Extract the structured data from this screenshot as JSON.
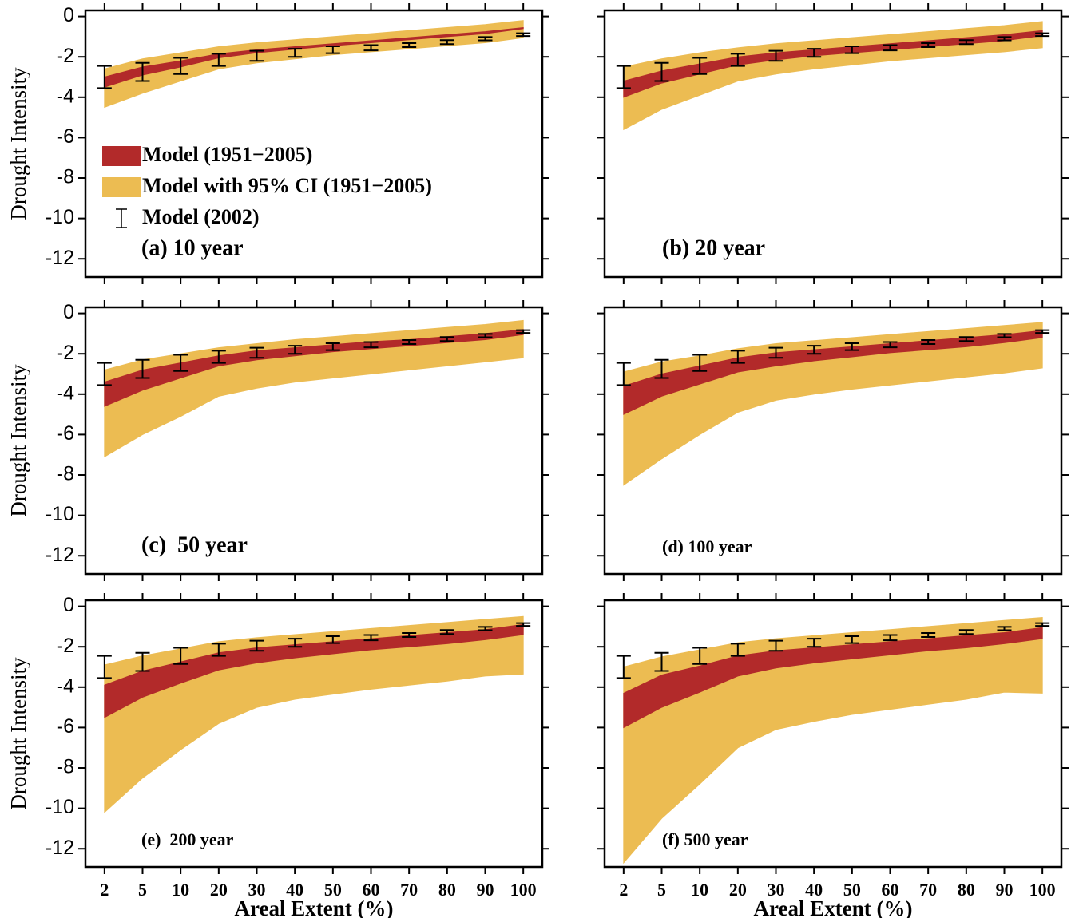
{
  "chart_data": [
    {
      "type": "band",
      "label": "(a) 10 year",
      "ylabel": "Drought Intensity",
      "ylim": [
        -12.9,
        0.3
      ],
      "yticks": [
        0,
        -2,
        -4,
        -6,
        -8,
        -10,
        -12
      ],
      "series": [
        {
          "name": "Model (1951−2005)",
          "color": "#b22a2a",
          "high": [
            -3.0,
            -2.5,
            -2.2,
            -1.85,
            -1.65,
            -1.5,
            -1.35,
            -1.2,
            -1.05,
            -0.9,
            -0.75,
            -0.55
          ],
          "low": [
            -3.5,
            -2.9,
            -2.5,
            -2.05,
            -1.8,
            -1.62,
            -1.45,
            -1.3,
            -1.15,
            -1.0,
            -0.85,
            -0.6
          ]
        },
        {
          "name": "Model with 95% CI (1951−2005)",
          "color": "#ecbc52",
          "high": [
            -2.6,
            -2.1,
            -1.8,
            -1.5,
            -1.3,
            -1.15,
            -1.0,
            -0.85,
            -0.7,
            -0.55,
            -0.4,
            -0.2
          ],
          "low": [
            -4.5,
            -3.8,
            -3.2,
            -2.6,
            -2.3,
            -2.1,
            -1.9,
            -1.75,
            -1.6,
            -1.45,
            -1.3,
            -1.05
          ]
        },
        {
          "name": "Model (2002)",
          "color": "#000000",
          "values": [
            -3.0,
            -2.75,
            -2.45,
            -2.15,
            -1.95,
            -1.8,
            -1.65,
            -1.55,
            -1.42,
            -1.27,
            -1.1,
            -0.9
          ],
          "errors": [
            0.55,
            0.45,
            0.4,
            0.3,
            0.25,
            0.2,
            0.17,
            0.13,
            0.1,
            0.1,
            0.08,
            0.07
          ]
        }
      ]
    },
    {
      "type": "band",
      "label": "(b) 20 year",
      "ylim": [
        -12.9,
        0.3
      ],
      "series": [
        {
          "color": "#b22a2a",
          "high": [
            -3.2,
            -2.7,
            -2.35,
            -2.0,
            -1.8,
            -1.65,
            -1.5,
            -1.35,
            -1.2,
            -1.05,
            -0.9,
            -0.7
          ],
          "low": [
            -4.0,
            -3.3,
            -2.85,
            -2.4,
            -2.15,
            -1.95,
            -1.8,
            -1.65,
            -1.5,
            -1.35,
            -1.2,
            -0.95
          ]
        },
        {
          "color": "#ecbc52",
          "high": [
            -2.5,
            -2.1,
            -1.8,
            -1.55,
            -1.35,
            -1.2,
            -1.05,
            -0.9,
            -0.75,
            -0.6,
            -0.45,
            -0.25
          ],
          "low": [
            -5.6,
            -4.6,
            -3.9,
            -3.2,
            -2.85,
            -2.6,
            -2.4,
            -2.2,
            -2.05,
            -1.9,
            -1.75,
            -1.55
          ]
        },
        {
          "color": "#000000",
          "values": [
            -3.0,
            -2.75,
            -2.45,
            -2.15,
            -1.95,
            -1.8,
            -1.65,
            -1.55,
            -1.42,
            -1.27,
            -1.1,
            -0.9
          ],
          "errors": [
            0.55,
            0.45,
            0.4,
            0.3,
            0.25,
            0.2,
            0.17,
            0.13,
            0.1,
            0.1,
            0.08,
            0.07
          ]
        }
      ]
    },
    {
      "type": "band",
      "label": "(c)  50 year",
      "ylabel": "Drought Intensity",
      "ylim": [
        -12.9,
        0.3
      ],
      "yticks": [
        0,
        -2,
        -4,
        -6,
        -8,
        -10,
        -12
      ],
      "series": [
        {
          "color": "#b22a2a",
          "high": [
            -3.4,
            -2.8,
            -2.45,
            -2.1,
            -1.85,
            -1.7,
            -1.55,
            -1.4,
            -1.3,
            -1.15,
            -1.0,
            -0.8
          ],
          "low": [
            -4.6,
            -3.8,
            -3.2,
            -2.6,
            -2.3,
            -2.1,
            -1.9,
            -1.75,
            -1.6,
            -1.45,
            -1.3,
            -1.05
          ]
        },
        {
          "color": "#ecbc52",
          "high": [
            -2.8,
            -2.3,
            -2.0,
            -1.7,
            -1.5,
            -1.3,
            -1.15,
            -1.0,
            -0.85,
            -0.7,
            -0.55,
            -0.35
          ],
          "low": [
            -7.1,
            -6.0,
            -5.1,
            -4.1,
            -3.7,
            -3.4,
            -3.2,
            -3.0,
            -2.8,
            -2.6,
            -2.4,
            -2.2
          ]
        },
        {
          "color": "#000000",
          "values": [
            -3.0,
            -2.75,
            -2.45,
            -2.15,
            -1.95,
            -1.8,
            -1.65,
            -1.55,
            -1.42,
            -1.27,
            -1.1,
            -0.9
          ],
          "errors": [
            0.55,
            0.45,
            0.4,
            0.3,
            0.25,
            0.2,
            0.17,
            0.13,
            0.1,
            0.1,
            0.08,
            0.07
          ]
        }
      ]
    },
    {
      "type": "band",
      "label": "(d) 100 year",
      "ylim": [
        -12.9,
        0.3
      ],
      "series": [
        {
          "color": "#b22a2a",
          "high": [
            -3.6,
            -3.0,
            -2.6,
            -2.2,
            -1.95,
            -1.8,
            -1.65,
            -1.5,
            -1.35,
            -1.2,
            -1.05,
            -0.85
          ],
          "low": [
            -5.0,
            -4.1,
            -3.5,
            -2.9,
            -2.6,
            -2.35,
            -2.15,
            -1.95,
            -1.8,
            -1.65,
            -1.45,
            -1.2
          ]
        },
        {
          "color": "#ecbc52",
          "high": [
            -2.9,
            -2.4,
            -2.1,
            -1.75,
            -1.5,
            -1.35,
            -1.2,
            -1.05,
            -0.9,
            -0.75,
            -0.6,
            -0.45
          ],
          "low": [
            -8.5,
            -7.2,
            -6.0,
            -4.9,
            -4.3,
            -4.0,
            -3.75,
            -3.55,
            -3.35,
            -3.15,
            -2.95,
            -2.7
          ]
        },
        {
          "color": "#000000",
          "values": [
            -3.0,
            -2.75,
            -2.45,
            -2.15,
            -1.95,
            -1.8,
            -1.65,
            -1.55,
            -1.42,
            -1.27,
            -1.1,
            -0.9
          ],
          "errors": [
            0.55,
            0.45,
            0.4,
            0.3,
            0.25,
            0.2,
            0.17,
            0.13,
            0.1,
            0.1,
            0.08,
            0.07
          ]
        }
      ]
    },
    {
      "type": "band",
      "label": "(e)  200 year",
      "ylabel": "Drought Intensity",
      "xlabel": "Areal Extent (%)",
      "categories": [
        2,
        5,
        10,
        20,
        30,
        40,
        50,
        60,
        70,
        80,
        90,
        100
      ],
      "ylim": [
        -12.9,
        0.3
      ],
      "yticks": [
        0,
        -2,
        -4,
        -6,
        -8,
        -10,
        -12
      ],
      "series": [
        {
          "color": "#b22a2a",
          "high": [
            -3.9,
            -3.2,
            -2.75,
            -2.3,
            -2.05,
            -1.9,
            -1.75,
            -1.6,
            -1.45,
            -1.3,
            -1.15,
            -0.9
          ],
          "low": [
            -5.5,
            -4.5,
            -3.8,
            -3.15,
            -2.8,
            -2.55,
            -2.35,
            -2.15,
            -2.0,
            -1.85,
            -1.65,
            -1.4
          ]
        },
        {
          "color": "#ecbc52",
          "high": [
            -2.9,
            -2.45,
            -2.1,
            -1.75,
            -1.55,
            -1.4,
            -1.25,
            -1.1,
            -0.95,
            -0.8,
            -0.65,
            -0.5
          ],
          "low": [
            -10.2,
            -8.5,
            -7.1,
            -5.8,
            -5.0,
            -4.6,
            -4.35,
            -4.1,
            -3.9,
            -3.7,
            -3.45,
            -3.35
          ]
        },
        {
          "color": "#000000",
          "values": [
            -3.0,
            -2.75,
            -2.45,
            -2.15,
            -1.95,
            -1.8,
            -1.65,
            -1.55,
            -1.42,
            -1.27,
            -1.1,
            -0.9
          ],
          "errors": [
            0.55,
            0.45,
            0.4,
            0.3,
            0.25,
            0.2,
            0.17,
            0.13,
            0.1,
            0.1,
            0.08,
            0.07
          ]
        }
      ]
    },
    {
      "type": "band",
      "label": "(f) 500 year",
      "xlabel": "Areal Extent (%)",
      "categories": [
        2,
        5,
        10,
        20,
        30,
        40,
        50,
        60,
        70,
        80,
        90,
        100
      ],
      "ylim": [
        -12.9,
        0.3
      ],
      "series": [
        {
          "color": "#b22a2a",
          "high": [
            -4.3,
            -3.4,
            -2.95,
            -2.45,
            -2.2,
            -2.05,
            -1.9,
            -1.75,
            -1.6,
            -1.45,
            -1.3,
            -1.05
          ],
          "low": [
            -6.0,
            -5.0,
            -4.25,
            -3.45,
            -3.05,
            -2.8,
            -2.6,
            -2.4,
            -2.2,
            -2.05,
            -1.85,
            -1.6
          ]
        },
        {
          "color": "#ecbc52",
          "high": [
            -3.0,
            -2.5,
            -2.15,
            -1.8,
            -1.6,
            -1.45,
            -1.3,
            -1.15,
            -1.0,
            -0.85,
            -0.7,
            -0.55
          ],
          "low": [
            -12.7,
            -10.5,
            -8.8,
            -7.0,
            -6.1,
            -5.7,
            -5.35,
            -5.1,
            -4.85,
            -4.6,
            -4.25,
            -4.3
          ]
        },
        {
          "color": "#000000",
          "values": [
            -3.0,
            -2.75,
            -2.45,
            -2.15,
            -1.95,
            -1.8,
            -1.65,
            -1.55,
            -1.42,
            -1.27,
            -1.1,
            -0.9
          ],
          "errors": [
            0.55,
            0.45,
            0.4,
            0.3,
            0.25,
            0.2,
            0.17,
            0.13,
            0.1,
            0.1,
            0.08,
            0.07
          ]
        }
      ]
    }
  ]
}
